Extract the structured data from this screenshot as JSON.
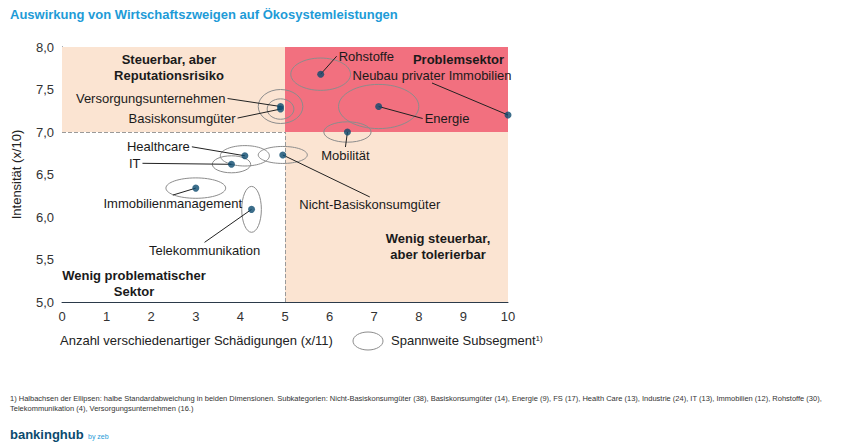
{
  "chart_data": {
    "type": "scatter",
    "title": "Auswirkung von Wirtschaftszweigen auf Ökosystemleistungen",
    "x_label": "Anzahl verschiedenartiger Schädigungen (x/11)",
    "y_label": "Intensität (x/10)",
    "xlim": [
      0,
      10
    ],
    "xticks": [
      0,
      1,
      2,
      3,
      4,
      5,
      6,
      7,
      8,
      9,
      10
    ],
    "ylim": [
      5,
      8
    ],
    "yticks": [
      {
        "value": 5,
        "label": "5,0"
      },
      {
        "value": 5.5,
        "label": "5,5"
      },
      {
        "value": 6,
        "label": "6,0"
      },
      {
        "value": 6.5,
        "label": "6,5"
      },
      {
        "value": 7,
        "label": "7,0"
      },
      {
        "value": 7.5,
        "label": "7,5"
      },
      {
        "value": 8,
        "label": "8,0"
      }
    ],
    "grid": false,
    "color": "#0b4a6e",
    "marker": "circle",
    "points": [
      {
        "label": "Rohstoffe",
        "x": 5.8,
        "y": 7.68,
        "spread_x": 0.67,
        "spread_y": 0.19
      },
      {
        "label": "Neubau privater Immobilien",
        "x": 10.0,
        "y": 7.2,
        "spread_x": 0,
        "spread_y": 0
      },
      {
        "label": "Energie",
        "x": 7.1,
        "y": 7.3,
        "spread_x": 0.9,
        "spread_y": 0.26
      },
      {
        "label": "Versorgungsunternehmen",
        "x": 4.9,
        "y": 7.3,
        "spread_x": 0.5,
        "spread_y": 0.2
      },
      {
        "label": "Basiskonsumgüter",
        "x": 4.9,
        "y": 7.27,
        "spread_x": 0.3,
        "spread_y": 0.12
      },
      {
        "label": "Mobilität",
        "x": 6.4,
        "y": 7.0,
        "spread_x": 0.53,
        "spread_y": 0.12
      },
      {
        "label": "Healthcare",
        "x": 4.1,
        "y": 6.72,
        "spread_x": 0.55,
        "spread_y": 0.12
      },
      {
        "label": "IT",
        "x": 3.8,
        "y": 6.62,
        "spread_x": 0.43,
        "spread_y": 0.1
      },
      {
        "label": "Nicht-Basiskonsumgüter",
        "x": 4.95,
        "y": 6.73,
        "spread_x": 0.55,
        "spread_y": 0.1
      },
      {
        "label": "Immobilienmanagement",
        "x": 3.0,
        "y": 6.34,
        "spread_x": 0.67,
        "spread_y": 0.12
      },
      {
        "label": "Telekommunikation",
        "x": 4.25,
        "y": 6.09,
        "spread_x": 0.22,
        "spread_y": 0.27
      }
    ],
    "quadrants": [
      {
        "label": [
          "Steuerbar, aber",
          "Reputationsrisiko"
        ],
        "color": "#fbe4d2",
        "xrange": [
          0,
          5
        ],
        "yrange": [
          7,
          8
        ]
      },
      {
        "label": [
          "Problemsektor"
        ],
        "color": "#f2707f",
        "xrange": [
          5,
          10
        ],
        "yrange": [
          7,
          8
        ]
      },
      {
        "label": [
          "Wenig steuerbar,",
          "aber tolerierbar"
        ],
        "color": "#fbe4d2",
        "xrange": [
          5,
          10
        ],
        "yrange": [
          5,
          7
        ]
      },
      {
        "label": [
          "Wenig problematischer",
          "Sektor"
        ],
        "color": "#ffffff",
        "xrange": [
          0,
          5
        ],
        "yrange": [
          5,
          7
        ],
        "line_style": "dashed"
      }
    ],
    "ellipse_legend": "Spannweite Subsegment",
    "ellipse_legend_note": "1)",
    "footnote": [
      "1) Halbachsen der Ellipsen: halbe Standardabweichung in beiden Dimensionen. Subkategorien: Nicht-Basiskonsumgüter (38), Basiskonsumgüter (14), Energie (9), FS (17), Health Care (13), Industrie (24), IT (13), Immobilien (12), Rohstoffe (30),",
      "Telekommunikation (4), Versorgungsunternehmen (16.)"
    ],
    "source": [
      "bankinghub",
      "by zeb"
    ]
  }
}
